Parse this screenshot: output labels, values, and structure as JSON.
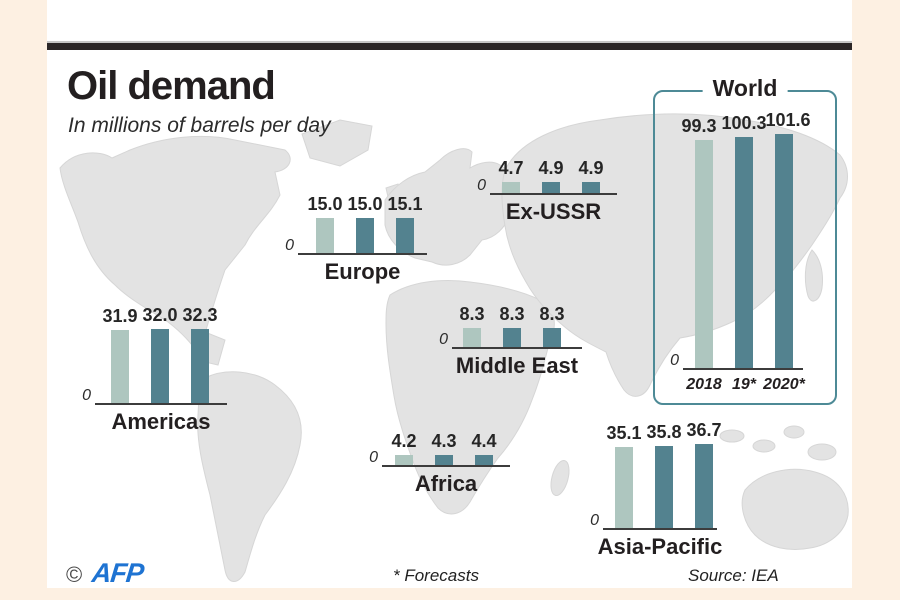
{
  "title": "Oil demand",
  "subtitle": "In millions of barrels per day",
  "world_box_label": "World",
  "zero_label": "0",
  "footer": {
    "copyright_symbol": "©",
    "agency": "AFP",
    "forecast_note": "* Forecasts",
    "source": "Source: IEA"
  },
  "colors": {
    "bar_2018": "#aec6bf",
    "bar_2019": "#53828f",
    "bar_2020": "#53828f",
    "world_box_border": "#4d8a96",
    "top_rule": "#2b2627",
    "frame": "#fdf0e2",
    "map_land": "#e3e3e3",
    "afp_blue": "#1e73d2"
  },
  "chart_data": {
    "type": "bar",
    "title": "Oil demand",
    "unit": "millions of barrels per day",
    "years": [
      "2018",
      "19*",
      "2020*"
    ],
    "note": "* Forecasts",
    "source": "IEA",
    "axis_zero_label": "0",
    "groups": [
      {
        "region": "Americas",
        "values": [
          31.9,
          32.0,
          32.3
        ]
      },
      {
        "region": "Europe",
        "values": [
          15.0,
          15.0,
          15.1
        ]
      },
      {
        "region": "Ex-USSR",
        "values": [
          4.7,
          4.9,
          4.9
        ]
      },
      {
        "region": "Middle East",
        "values": [
          8.3,
          8.3,
          8.3
        ]
      },
      {
        "region": "Africa",
        "values": [
          4.2,
          4.3,
          4.4
        ]
      },
      {
        "region": "Asia-Pacific",
        "values": [
          35.1,
          35.8,
          36.7
        ]
      },
      {
        "region": "World",
        "values": [
          99.3,
          100.3,
          101.6
        ]
      }
    ]
  }
}
